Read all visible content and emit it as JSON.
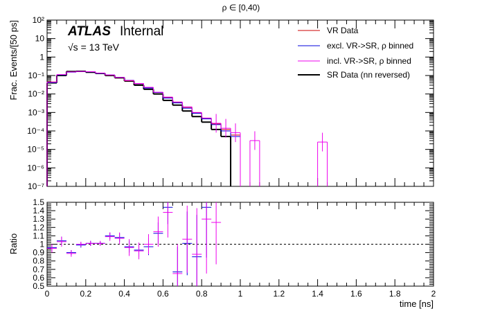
{
  "chart_data": [
    {
      "type": "line",
      "panel": "main",
      "title": "ρ ∈ [0,40)",
      "ylabel": "Frac. Events/[50 ps]",
      "xlim": [
        0,
        2
      ],
      "ylim": [
        1e-07,
        100
      ],
      "yscale": "log",
      "bin_width": 0.05,
      "yticks": [
        "10⁻⁷",
        "10⁻⁶",
        "10⁻⁵",
        "10⁻⁴",
        "10⁻³",
        "10⁻²",
        "10⁻¹",
        "1",
        "10",
        "10²"
      ],
      "atlas_label": "ATLAS",
      "atlas_status": "Internal",
      "energy_label": "√s = 13 TeV",
      "legend_position": "top-right",
      "series": [
        {
          "name": "VR Data",
          "color": "#cc0000",
          "errors": false,
          "values": [
            0.045,
            0.11,
            0.155,
            0.165,
            0.16,
            0.135,
            0.105,
            0.078,
            0.052,
            0.035,
            0.022,
            0.012,
            0.0065,
            0.0035,
            0.0019,
            0.00095,
            0.00048,
            0.00024,
            0.00012,
            6e-05,
            0,
            0,
            0,
            0,
            0,
            0,
            0,
            0,
            0,
            0,
            0,
            0,
            0,
            0,
            0,
            0,
            0,
            0,
            0,
            0
          ]
        },
        {
          "name": "excl. VR->SR, ρ binned",
          "color": "#0000dd",
          "errors": false,
          "values": [
            0.042,
            0.108,
            0.152,
            0.165,
            0.158,
            0.132,
            0.108,
            0.08,
            0.055,
            0.036,
            0.021,
            0.012,
            0.006,
            0.0033,
            0.0017,
            0.0009,
            0.00045,
            0.00022,
            0.0001,
            5e-05,
            0,
            0,
            0,
            0,
            0,
            0,
            0,
            0,
            0,
            0,
            0,
            0,
            0,
            0,
            0,
            0,
            0,
            0,
            0,
            0
          ]
        },
        {
          "name": "incl. VR->SR, ρ binned",
          "color": "#ee00ee",
          "errors": true,
          "values": [
            0.044,
            0.112,
            0.156,
            0.166,
            0.161,
            0.136,
            0.107,
            0.079,
            0.054,
            0.037,
            0.023,
            0.0125,
            0.0068,
            0.0037,
            0.002,
            0.001,
            0.0005,
            0.00026,
            0.00014,
            8e-05,
            0,
            3e-05,
            0,
            0,
            0,
            0,
            0,
            0,
            2.5e-05,
            0,
            0,
            0,
            0,
            0,
            0,
            0,
            0,
            0,
            0,
            0
          ]
        },
        {
          "name": "SR Data (nn reversed)",
          "color": "#000000",
          "errors": false,
          "values": [
            0.04,
            0.1,
            0.165,
            0.17,
            0.15,
            0.13,
            0.1,
            0.075,
            0.05,
            0.03,
            0.018,
            0.01,
            0.0045,
            0.0025,
            0.0012,
            0.0006,
            0.0003,
            0.00012,
            5e-05,
            0,
            0,
            0,
            0,
            0,
            0,
            0,
            0,
            0,
            0,
            0,
            0,
            0,
            0,
            0,
            0,
            0,
            0,
            0,
            0,
            0
          ]
        }
      ]
    },
    {
      "type": "scatter",
      "panel": "ratio",
      "xlabel": "time [ns]",
      "ylabel": "Ratio",
      "xlim": [
        0,
        2
      ],
      "ylim": [
        0.5,
        1.5
      ],
      "reference_line": 1,
      "xticks": [
        "0",
        "0.2",
        "0.4",
        "0.6",
        "0.8",
        "1",
        "1.2",
        "1.4",
        "1.6",
        "1.8",
        "2"
      ],
      "yticks": [
        "0.5",
        "0.6",
        "0.7",
        "0.8",
        "0.9",
        "1",
        "1.1",
        "1.2",
        "1.3",
        "1.4",
        "1.5"
      ],
      "series": [
        {
          "name": "excl. VR->SR, ρ binned",
          "color": "#0000dd",
          "x": [
            0.025,
            0.075,
            0.125,
            0.175,
            0.225,
            0.275,
            0.325,
            0.375,
            0.425,
            0.475,
            0.525,
            0.575,
            0.625,
            0.675,
            0.725,
            0.775,
            0.825
          ],
          "y": [
            0.96,
            1.04,
            0.9,
            0.99,
            1.01,
            1.01,
            1.1,
            1.08,
            0.97,
            0.93,
            0.97,
            1.13,
            1.44,
            0.67,
            1.01,
            0.85,
            1.44
          ],
          "err": [
            0.04,
            0.05,
            0.03,
            0.03,
            0.03,
            0.02,
            0.04,
            0.05,
            0.07,
            0.08,
            0.1,
            0.13,
            0.2,
            0.3,
            0.38,
            0.5,
            0.6
          ]
        },
        {
          "name": "incl. VR->SR, ρ binned",
          "color": "#ee00ee",
          "x": [
            0.025,
            0.075,
            0.125,
            0.175,
            0.225,
            0.275,
            0.325,
            0.375,
            0.425,
            0.475,
            0.525,
            0.575,
            0.625,
            0.675,
            0.725,
            0.775,
            0.825,
            0.875
          ],
          "y": [
            0.95,
            1.03,
            0.89,
            1.0,
            1.01,
            1.01,
            1.09,
            1.07,
            0.96,
            0.92,
            1.0,
            1.15,
            1.38,
            0.65,
            1.06,
            0.88,
            1.3,
            1.26
          ],
          "err": [
            0.05,
            0.06,
            0.04,
            0.03,
            0.03,
            0.03,
            0.05,
            0.07,
            0.1,
            0.1,
            0.12,
            0.18,
            0.3,
            0.35,
            0.4,
            0.55,
            0.65,
            0.5
          ]
        }
      ]
    }
  ]
}
